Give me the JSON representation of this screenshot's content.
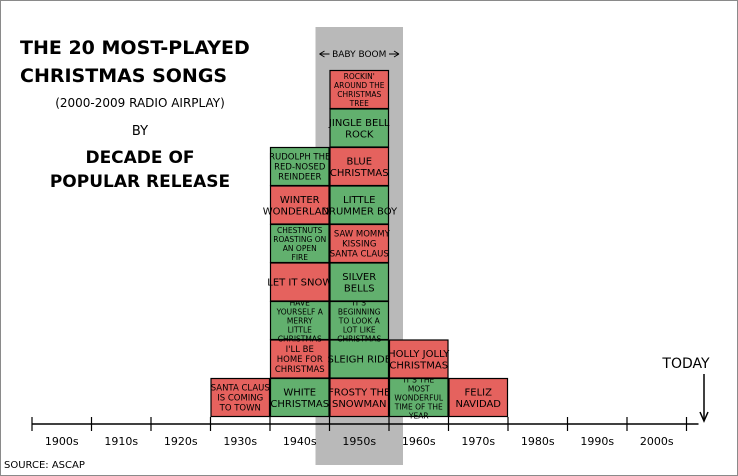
{
  "title": {
    "line1": "THE 20 MOST-PLAYED",
    "line2": "CHRISTMAS SONGS",
    "subtitle": "(2000-2009 RADIO AIRPLAY)",
    "by": "BY",
    "decade_line1": "DECADE OF",
    "decade_line2": "POPULAR RELEASE"
  },
  "source": "SOURCE: ASCAP",
  "colors": {
    "red": "#e5625e",
    "green": "#62b06e",
    "shade": "#b9b9b9",
    "stroke": "#000000"
  },
  "chart_data": {
    "type": "bar",
    "title": "THE 20 MOST-PLAYED CHRISTMAS SONGS (2000-2009 RADIO AIRPLAY) BY DECADE OF POPULAR RELEASE",
    "categories": [
      "1900s",
      "1910s",
      "1920s",
      "1930s",
      "1940s",
      "1950s",
      "1960s",
      "1970s",
      "1980s",
      "1990s",
      "2000s"
    ],
    "values": [
      0,
      0,
      0,
      1,
      7,
      9,
      2,
      1,
      0,
      0,
      0
    ],
    "stacks": {
      "1930s": [
        "SANTA CLAUS IS COMING TO TOWN"
      ],
      "1940s": [
        "WHITE CHRISTMAS",
        "I'LL BE HOME FOR CHRISTMAS",
        "HAVE YOURSELF A MERRY LITTLE CHRISTMAS",
        "LET IT SNOW",
        "CHESTNUTS ROASTING ON AN OPEN FIRE",
        "WINTER WONDERLAND",
        "RUDOLPH THE RED-NOSED REINDEER"
      ],
      "1950s": [
        "FROSTY THE SNOWMAN",
        "SLEIGH RIDE",
        "IT'S BEGINNING TO LOOK A LOT LIKE CHRISTMAS",
        "SILVER BELLS",
        "I SAW MOMMY KISSING SANTA CLAUS",
        "LITTLE DRUMMER BOY",
        "BLUE CHRISTMAS",
        "JINGLE BELL ROCK",
        "ROCKIN' AROUND THE CHRISTMAS TREE"
      ],
      "1960s": [
        "IT'S THE MOST WONDERFUL TIME OF THE YEAR",
        "HOLLY JOLLY CHRISTMAS"
      ],
      "1970s": [
        "FELIZ NAVIDAD"
      ]
    },
    "box_colors": {
      "1930s": [
        "red"
      ],
      "1940s": [
        "green",
        "red",
        "green",
        "red",
        "green",
        "red",
        "green"
      ],
      "1950s": [
        "red",
        "green",
        "green",
        "green",
        "red",
        "green",
        "red",
        "green",
        "red"
      ],
      "1960s": [
        "green",
        "red"
      ],
      "1970s": [
        "red"
      ]
    },
    "annotations": {
      "baby_boom": "BABY BOOM",
      "today": "TODAY"
    },
    "xlabel": "",
    "ylabel": "",
    "grid": false
  }
}
